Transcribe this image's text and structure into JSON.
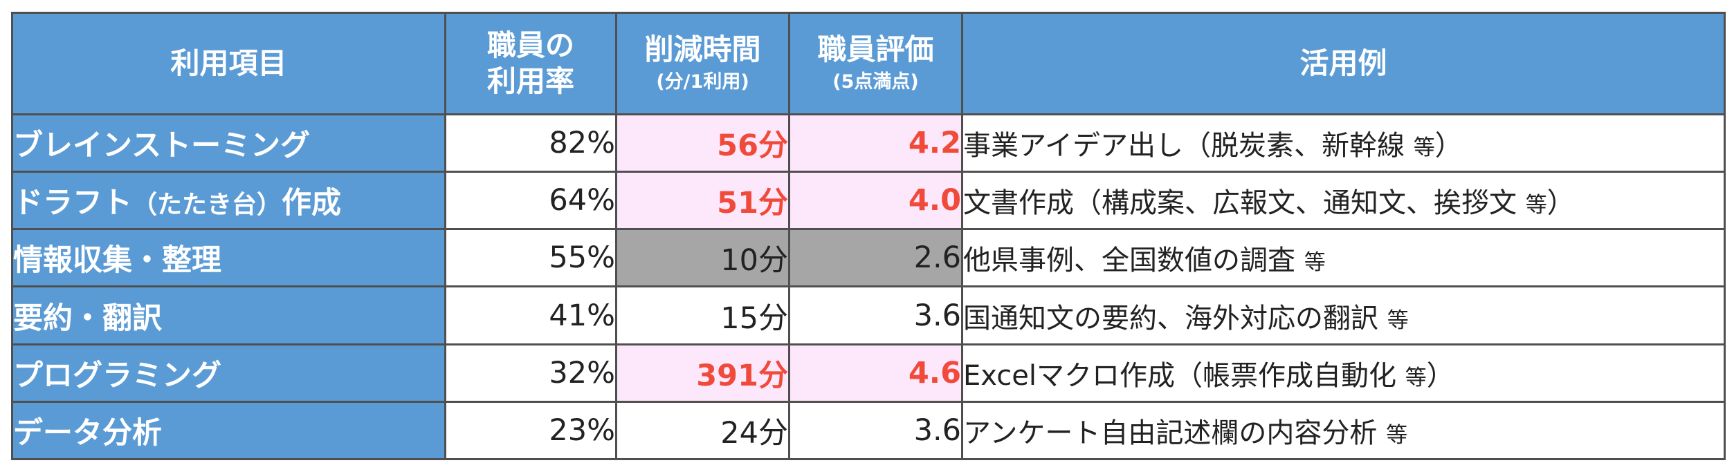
{
  "headers": {
    "item": "利用項目",
    "usage_rate": [
      "職員の",
      "利用率"
    ],
    "time_saved": "削減時間",
    "time_saved_unit": "(分/1利用)",
    "rating": "職員評価",
    "rating_unit": "(5点満点)",
    "example": "活用例"
  },
  "rows": [
    {
      "item": "ブレインストーミング",
      "item_paren": "",
      "item_suffix": "",
      "rate": "82%",
      "time": "56分",
      "score": "4.2",
      "highlight": "pink",
      "example": "事業アイデア出し（脱炭素、新幹線",
      "example_etc": "等",
      "example_close": "）"
    },
    {
      "item": "ドラフト",
      "item_paren": "（たたき台）",
      "item_suffix": "作成",
      "rate": "64%",
      "time": "51分",
      "score": "4.0",
      "highlight": "pink",
      "example": "文書作成（構成案、広報文、通知文、挨拶文",
      "example_etc": "等",
      "example_close": "）"
    },
    {
      "item": "情報収集・整理",
      "item_paren": "",
      "item_suffix": "",
      "rate": "55%",
      "time": "10分",
      "score": "2.6",
      "highlight": "gray",
      "example": "他県事例、全国数値の調査",
      "example_etc": "等",
      "example_close": ""
    },
    {
      "item": "要約・翻訳",
      "item_paren": "",
      "item_suffix": "",
      "rate": "41%",
      "time": "15分",
      "score": "3.6",
      "highlight": "none",
      "example": "国通知文の要約、海外対応の翻訳",
      "example_etc": "等",
      "example_close": ""
    },
    {
      "item": "プログラミング",
      "item_paren": "",
      "item_suffix": "",
      "rate": "32%",
      "time": "391分",
      "score": "4.6",
      "highlight": "pink",
      "example": "Excelマクロ作成（帳票作成自動化",
      "example_etc": "等",
      "example_close": "）"
    },
    {
      "item": "データ分析",
      "item_paren": "",
      "item_suffix": "",
      "rate": "23%",
      "time": "24分",
      "score": "3.6",
      "highlight": "none",
      "example": "アンケート自由記述欄の内容分析",
      "example_etc": "等",
      "example_close": ""
    }
  ],
  "colors": {
    "header_bg": "#5b9bd5",
    "highlight_bg": "#fde7fb",
    "highlight_text": "#f04a3a",
    "gray_bg": "#a6a6a6",
    "border": "#4f4f4f"
  }
}
